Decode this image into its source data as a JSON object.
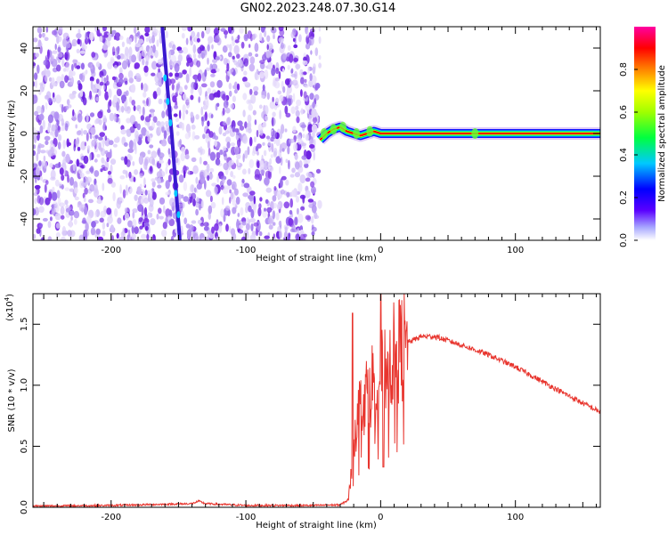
{
  "title": "GN02.2023.248.07.30.G14",
  "colors": {
    "snr_line": "#e8352e",
    "trace": "#3a1ad0",
    "scatter": "#7b2fe6"
  },
  "chart_data": [
    {
      "type": "heatmap",
      "title": "GN02.2023.248.07.30.G14",
      "xlabel": "Height of straight line (km)",
      "ylabel": "Frequency (Hz)",
      "xlim": [
        -258,
        163
      ],
      "ylim": [
        -50,
        50
      ],
      "x_ticks": [
        -200,
        -100,
        0,
        100
      ],
      "x_tick_labels": [
        "-200",
        "-100",
        "0",
        "100"
      ],
      "y_ticks": [
        -40,
        -20,
        0,
        20,
        40
      ],
      "y_tick_labels": [
        "-40",
        "-20",
        "0",
        "20",
        "40"
      ],
      "grid": false,
      "noise_region_x": [
        -258,
        -45
      ],
      "main_signal": {
        "description_x": [
          -45,
          -40,
          -35,
          -30,
          -25,
          -20,
          -15,
          -10,
          -5,
          0,
          10,
          50,
          70,
          100,
          163
        ],
        "y": [
          -3,
          0,
          2,
          3,
          1,
          0,
          -1,
          0,
          1,
          0,
          0,
          0,
          0,
          0,
          0
        ]
      },
      "diagonal_trace": {
        "x": [
          -162,
          -158,
          -155,
          -152,
          -149
        ],
        "y": [
          50,
          20,
          0,
          -25,
          -50
        ]
      },
      "colorbar": {
        "label": "Normalized spectral amplitude",
        "range": [
          0,
          1
        ],
        "ticks": [
          0.0,
          0.2,
          0.4,
          0.6,
          0.8
        ],
        "tick_labels": [
          "0.0",
          "0.2",
          "0.4",
          "0.6",
          "0.8"
        ],
        "colormap": "rainbow"
      }
    },
    {
      "type": "line",
      "xlabel": "Height of straight line (km)",
      "ylabel": "SNR (10 * v/v)",
      "y_multiplier": "(x10",
      "y_multiplier_exp": "4",
      "y_multiplier_close": ")",
      "xlim": [
        -258,
        163
      ],
      "ylim": [
        0,
        17500
      ],
      "x_ticks": [
        -200,
        -100,
        0,
        100
      ],
      "x_tick_labels": [
        "-200",
        "-100",
        "0",
        "100"
      ],
      "y_ticks": [
        0,
        5000,
        10000,
        15000
      ],
      "y_tick_labels": [
        "0.0",
        "0.5",
        "1.0",
        "1.5"
      ],
      "grid": false,
      "series": [
        {
          "x": [
            -258,
            -200,
            -140,
            -135,
            -130,
            -100,
            -50,
            -30,
            -24,
            -22,
            -20,
            -18,
            -15,
            -10,
            -5,
            0,
            5,
            10,
            15,
            20,
            30,
            40,
            60,
            80,
            100,
            120,
            140,
            163
          ],
          "y": [
            100,
            150,
            300,
            500,
            300,
            150,
            150,
            200,
            600,
            2500,
            5500,
            7000,
            8500,
            9500,
            10500,
            11000,
            11800,
            12500,
            13000,
            13500,
            14000,
            14000,
            13300,
            12500,
            11500,
            10300,
            9100,
            7800
          ]
        }
      ]
    }
  ]
}
